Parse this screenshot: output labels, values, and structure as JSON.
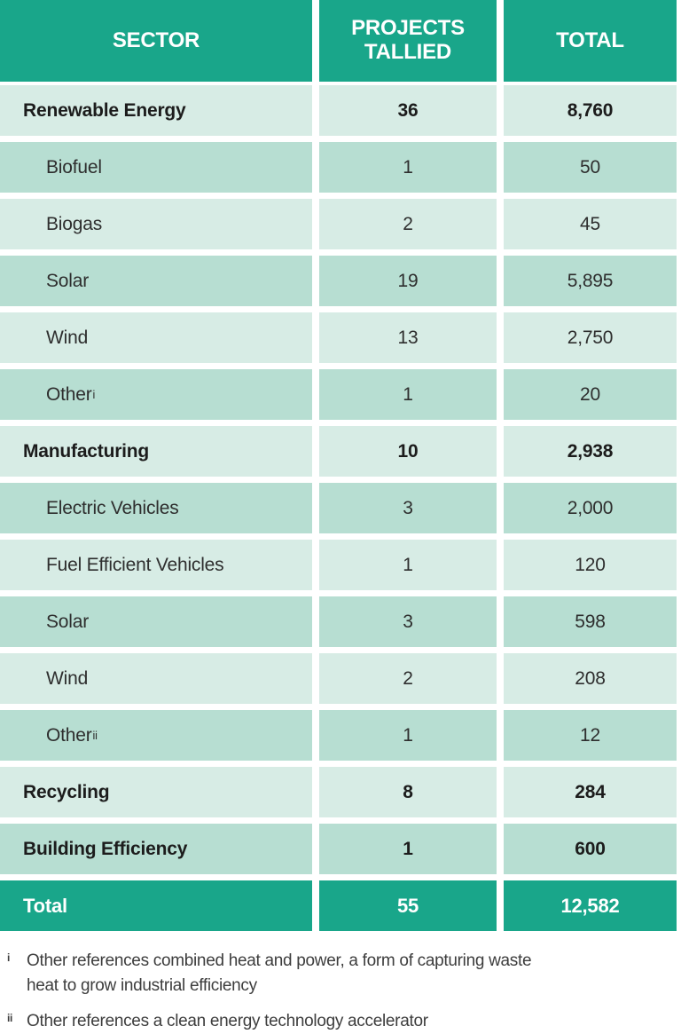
{
  "chart_data": {
    "type": "table",
    "columns": [
      "SECTOR",
      "PROJECTS TALLIED",
      "TOTAL"
    ],
    "rows": [
      {
        "sector": "Renewable Energy",
        "level": "category",
        "projects": "36",
        "total": "8,760"
      },
      {
        "sector": "Biofuel",
        "level": "sub",
        "projects": "1",
        "total": "50"
      },
      {
        "sector": "Biogas",
        "level": "sub",
        "projects": "2",
        "total": "45"
      },
      {
        "sector": "Solar",
        "level": "sub",
        "projects": "19",
        "total": "5,895"
      },
      {
        "sector": "Wind",
        "level": "sub",
        "projects": "13",
        "total": "2,750"
      },
      {
        "sector": "Other",
        "footnote_marker": "i",
        "level": "sub",
        "projects": "1",
        "total": "20"
      },
      {
        "sector": "Manufacturing",
        "level": "category",
        "projects": "10",
        "total": "2,938"
      },
      {
        "sector": "Electric Vehicles",
        "level": "sub",
        "projects": "3",
        "total": "2,000"
      },
      {
        "sector": "Fuel Efficient Vehicles",
        "level": "sub",
        "projects": "1",
        "total": "120"
      },
      {
        "sector": "Solar",
        "level": "sub",
        "projects": "3",
        "total": "598"
      },
      {
        "sector": "Wind",
        "level": "sub",
        "projects": "2",
        "total": "208"
      },
      {
        "sector": "Other",
        "footnote_marker": "ii",
        "level": "sub",
        "projects": "1",
        "total": "12"
      },
      {
        "sector": "Recycling",
        "level": "category",
        "projects": "8",
        "total": "284"
      },
      {
        "sector": "Building Efficiency",
        "level": "category",
        "projects": "1",
        "total": "600"
      }
    ],
    "footer": {
      "sector": "Total",
      "projects": "55",
      "total": "12,582"
    },
    "footnotes": [
      {
        "marker": "i",
        "text": "Other references combined heat and power, a form of capturing waste heat to grow industrial efficiency"
      },
      {
        "marker": "ii",
        "text": "Other references a clean energy technology accelerator"
      }
    ]
  },
  "colors": {
    "header_teal": "#19a68a",
    "row_light": "#d7ece5",
    "row_dark": "#b7ded2",
    "text_dark": "#1c1c1c"
  }
}
